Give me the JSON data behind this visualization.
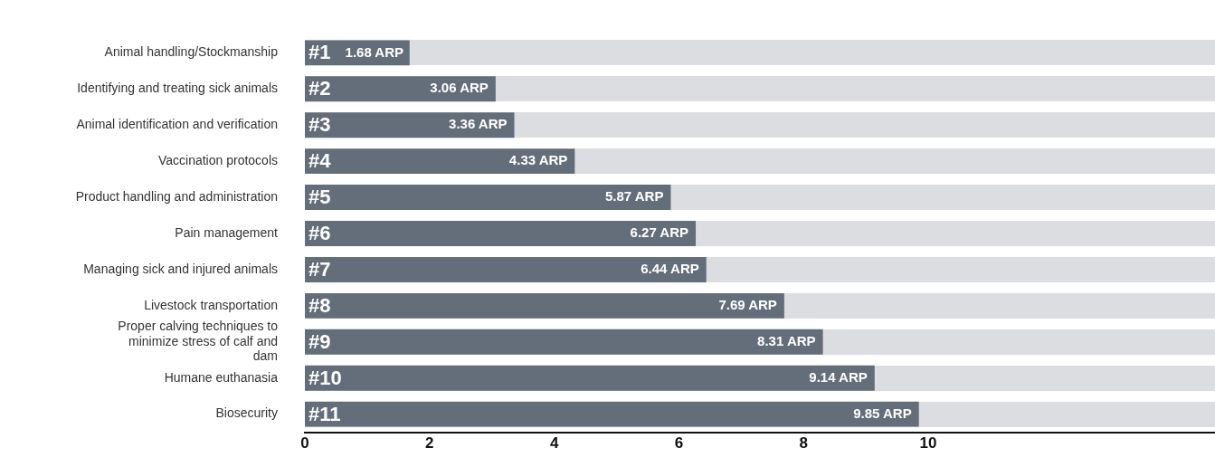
{
  "chart_data": {
    "type": "bar",
    "orientation": "horizontal",
    "categories": [
      "Animal handling/Stockmanship",
      "Identifying and treating sick animals",
      "Animal identification and verification",
      "Vaccination protocols",
      "Product handling and administration",
      "Pain management",
      "Managing sick and injured animals",
      "Livestock transportation",
      "Proper calving techniques to minimize stress of calf and dam",
      "Humane euthanasia",
      "Biosecurity"
    ],
    "values": [
      1.68,
      3.06,
      3.36,
      4.33,
      5.87,
      6.27,
      6.44,
      7.69,
      8.31,
      9.14,
      9.85
    ],
    "value_labels": [
      "1.68 ARP",
      "3.06 ARP",
      "3.36 ARP",
      "4.33 ARP",
      "5.87 ARP",
      "6.27 ARP",
      "6.44 ARP",
      "7.69 ARP",
      "8.31 ARP",
      "9.14 ARP",
      "9.85 ARP"
    ],
    "color": "#646e7a",
    "xlim": [
      0,
      14.6
    ],
    "xticks": [
      0,
      2,
      4,
      6,
      8,
      10
    ],
    "grid": false,
    "legend": false,
    "annotations": [
      {
        "text": "#1",
        "y": "Animal handling/Stockmanship"
      },
      {
        "text": "#2",
        "y": "Identifying and treating sick animals"
      },
      {
        "text": "#3",
        "y": "Animal identification and verification"
      },
      {
        "text": "#4",
        "y": "Vaccination protocols"
      },
      {
        "text": "#5",
        "y": "Product handling and administration"
      },
      {
        "text": "#6",
        "y": "Pain management"
      },
      {
        "text": "#7",
        "y": "Managing sick and injured animals"
      },
      {
        "text": "#8",
        "y": "Livestock transportation"
      },
      {
        "text": "#9",
        "y": "Proper calving techniques to minimize stress of calf and dam"
      },
      {
        "text": "#10",
        "y": "Humane euthanasia"
      },
      {
        "text": "#11",
        "y": "Biosecurity"
      }
    ]
  }
}
